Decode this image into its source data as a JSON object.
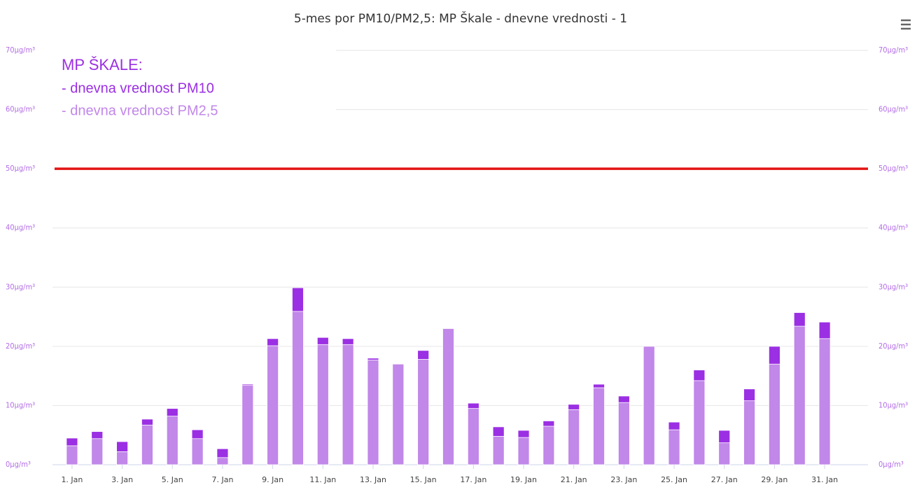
{
  "chart_data": {
    "type": "bar",
    "title": "5-mes por PM10/PM2,5: MP Škale - dnevne vrednosti - 1",
    "legend_title": "MP ŠKALE:",
    "legend": "top-left",
    "overlap": true,
    "grid": true,
    "categories": [
      "1. Jan",
      null,
      "3. Jan",
      null,
      "5. Jan",
      null,
      "7. Jan",
      null,
      "9. Jan",
      null,
      "11. Jan",
      null,
      "13. Jan",
      null,
      "15. Jan",
      null,
      "17. Jan",
      null,
      "19. Jan",
      null,
      "21. Jan",
      null,
      "23. Jan",
      null,
      "25. Jan",
      null,
      "27. Jan",
      null,
      "29. Jan",
      null,
      "31. Jan"
    ],
    "series": [
      {
        "name": "- dnevna vrednost PM10",
        "color": "#9b2fe3",
        "values": [
          4.5,
          5.6,
          3.9,
          7.7,
          9.5,
          5.9,
          2.7,
          13.6,
          21.3,
          29.9,
          21.5,
          21.3,
          18.0,
          17.0,
          19.3,
          23.0,
          10.4,
          6.4,
          5.8,
          7.4,
          10.2,
          13.6,
          11.6,
          20.0,
          7.2,
          16.0,
          5.8,
          12.8,
          20.0,
          25.7,
          24.1
        ]
      },
      {
        "name": "- dnevna vrednost PM2,5",
        "color": "#c187e9",
        "values": [
          3.2,
          4.4,
          2.2,
          6.7,
          8.2,
          4.4,
          1.2,
          13.4,
          20.1,
          25.9,
          20.3,
          20.3,
          17.7,
          17.0,
          17.8,
          23.0,
          9.5,
          4.8,
          4.6,
          6.5,
          9.3,
          13.0,
          10.5,
          20.0,
          5.9,
          14.2,
          3.7,
          10.8,
          17.0,
          23.4,
          21.3
        ]
      }
    ],
    "ylim": [
      0,
      70
    ],
    "yticks": [
      {
        "value": 0,
        "label": "0µg/m³"
      },
      {
        "value": 10,
        "label": "10µg/m³"
      },
      {
        "value": 20,
        "label": "20µg/m³"
      },
      {
        "value": 30,
        "label": "30µg/m³"
      },
      {
        "value": 40,
        "label": "40µg/m³"
      },
      {
        "value": 50,
        "label": "50µg/m³"
      },
      {
        "value": 60,
        "label": "60µg/m³"
      },
      {
        "value": 70,
        "label": "70µg/m³"
      }
    ],
    "y2lim": [
      0,
      70
    ],
    "y2ticks": [
      {
        "value": 0,
        "label": "0µg/m³"
      },
      {
        "value": 10,
        "label": "10µg/m³"
      },
      {
        "value": 20,
        "label": "20µg/m³"
      },
      {
        "value": 30,
        "label": "30µg/m³"
      },
      {
        "value": 40,
        "label": "40µg/m³"
      },
      {
        "value": 50,
        "label": "50µg/m³"
      },
      {
        "value": 60,
        "label": "60µg/m³"
      },
      {
        "value": 70,
        "label": "70µg/m³"
      }
    ],
    "plot_line": {
      "value": 50,
      "color": "#e31414"
    }
  }
}
